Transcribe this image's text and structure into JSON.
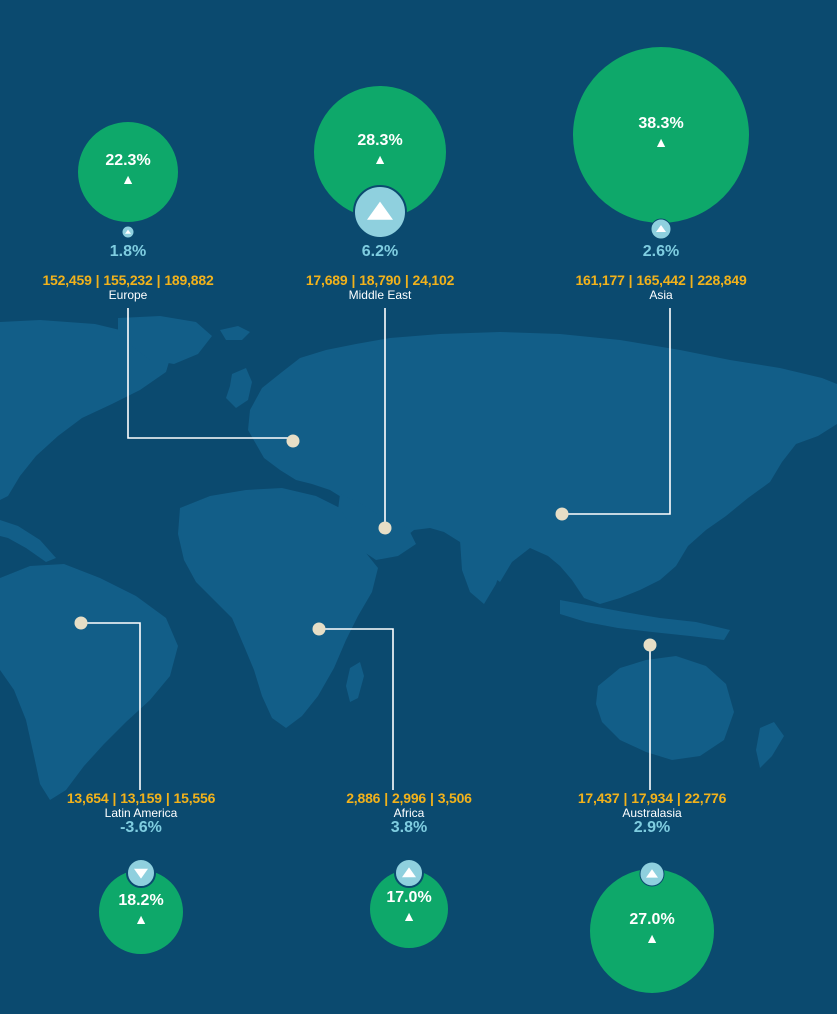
{
  "colors": {
    "background": "#0b4a6f",
    "land": "#125e88",
    "bubble": "#0ea86a",
    "growth_circle": "#8fd0de",
    "growth_text": "#7fcde0",
    "stats_text": "#f2b21b",
    "marker": "#e6dec6",
    "connector": "#ffffff"
  },
  "regions": [
    {
      "id": "europe",
      "name": "Europe",
      "stats": [
        "152,459",
        "155,232",
        "189,882"
      ],
      "share": "22.3%",
      "share_value": 22.3,
      "change": "1.8%",
      "change_value": 1.8,
      "direction": "up"
    },
    {
      "id": "middle-east",
      "name": "Middle East",
      "stats": [
        "17,689",
        "18,790",
        "24,102"
      ],
      "share": "28.3%",
      "share_value": 28.3,
      "change": "6.2%",
      "change_value": 6.2,
      "direction": "up"
    },
    {
      "id": "asia",
      "name": "Asia",
      "stats": [
        "161,177",
        "165,442",
        "228,849"
      ],
      "share": "38.3%",
      "share_value": 38.3,
      "change": "2.6%",
      "change_value": 2.6,
      "direction": "up"
    },
    {
      "id": "latin-america",
      "name": "Latin America",
      "stats": [
        "13,654",
        "13,159",
        "15,556"
      ],
      "share": "18.2%",
      "share_value": 18.2,
      "change": "-3.6%",
      "change_value": -3.6,
      "direction": "down"
    },
    {
      "id": "africa",
      "name": "Africa",
      "stats": [
        "2,886",
        "2,996",
        "3,506"
      ],
      "share": "17.0%",
      "share_value": 17.0,
      "change": "3.8%",
      "change_value": 3.8,
      "direction": "up"
    },
    {
      "id": "australasia",
      "name": "Australasia",
      "stats": [
        "17,437",
        "17,934",
        "22,776"
      ],
      "share": "27.0%",
      "share_value": 27.0,
      "change": "2.9%",
      "change_value": 2.9,
      "direction": "up"
    }
  ]
}
